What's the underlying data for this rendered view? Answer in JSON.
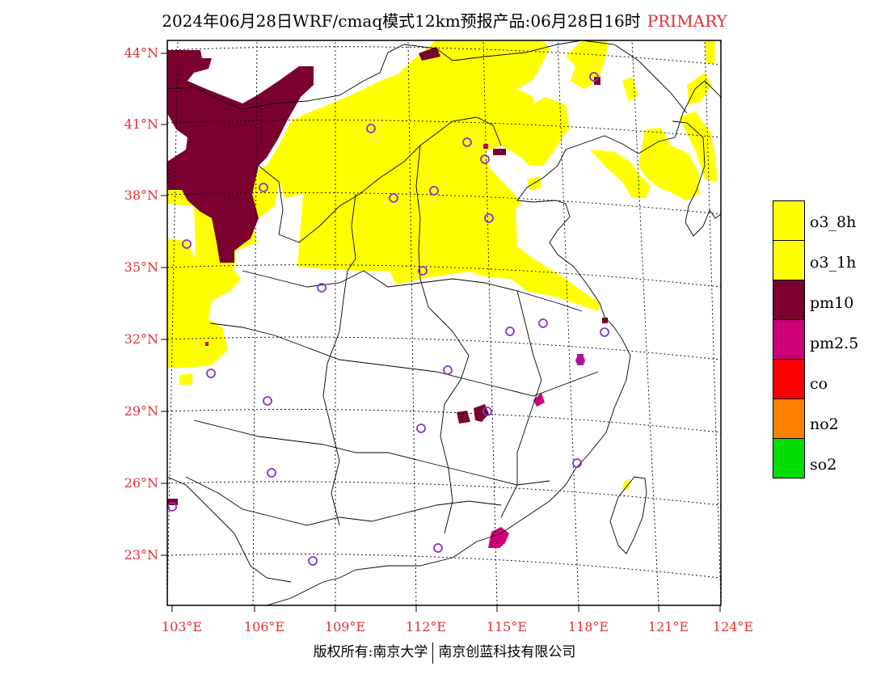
{
  "title": {
    "main": "2024年06月28日WRF/cmaq模式12km预报产品:06月28日16时",
    "tag": "PRIMARY"
  },
  "map": {
    "lat_labels": [
      "44°N",
      "41°N",
      "38°N",
      "35°N",
      "32°N",
      "29°N",
      "26°N",
      "23°N"
    ],
    "lon_labels": [
      "103°E",
      "106°E",
      "109°E",
      "112°E",
      "115°E",
      "118°E",
      "121°E",
      "124°E"
    ],
    "lon_range": [
      102.9,
      124
    ],
    "lat_range": [
      20.8,
      44.2
    ],
    "colors": {
      "o3_8h": "#ffff00",
      "pm10": "#7a0030",
      "pm25": "#cc0077",
      "station": "#8833cc",
      "axis_labels": "#e03030"
    }
  },
  "legend": {
    "items": [
      {
        "label": "o3_8h",
        "color": "#ffff00"
      },
      {
        "label": "o3_1h",
        "color": "#ffff00"
      },
      {
        "label": "pm10",
        "color": "#7a0030"
      },
      {
        "label": "pm2.5",
        "color": "#cc0077"
      },
      {
        "label": "co",
        "color": "#ff0000"
      },
      {
        "label": "no2",
        "color": "#ff7f00"
      },
      {
        "label": "so2",
        "color": "#00dd00"
      }
    ]
  },
  "footer": {
    "left": "版权所有:南京大学",
    "right": "南京创蓝科技有限公司"
  }
}
